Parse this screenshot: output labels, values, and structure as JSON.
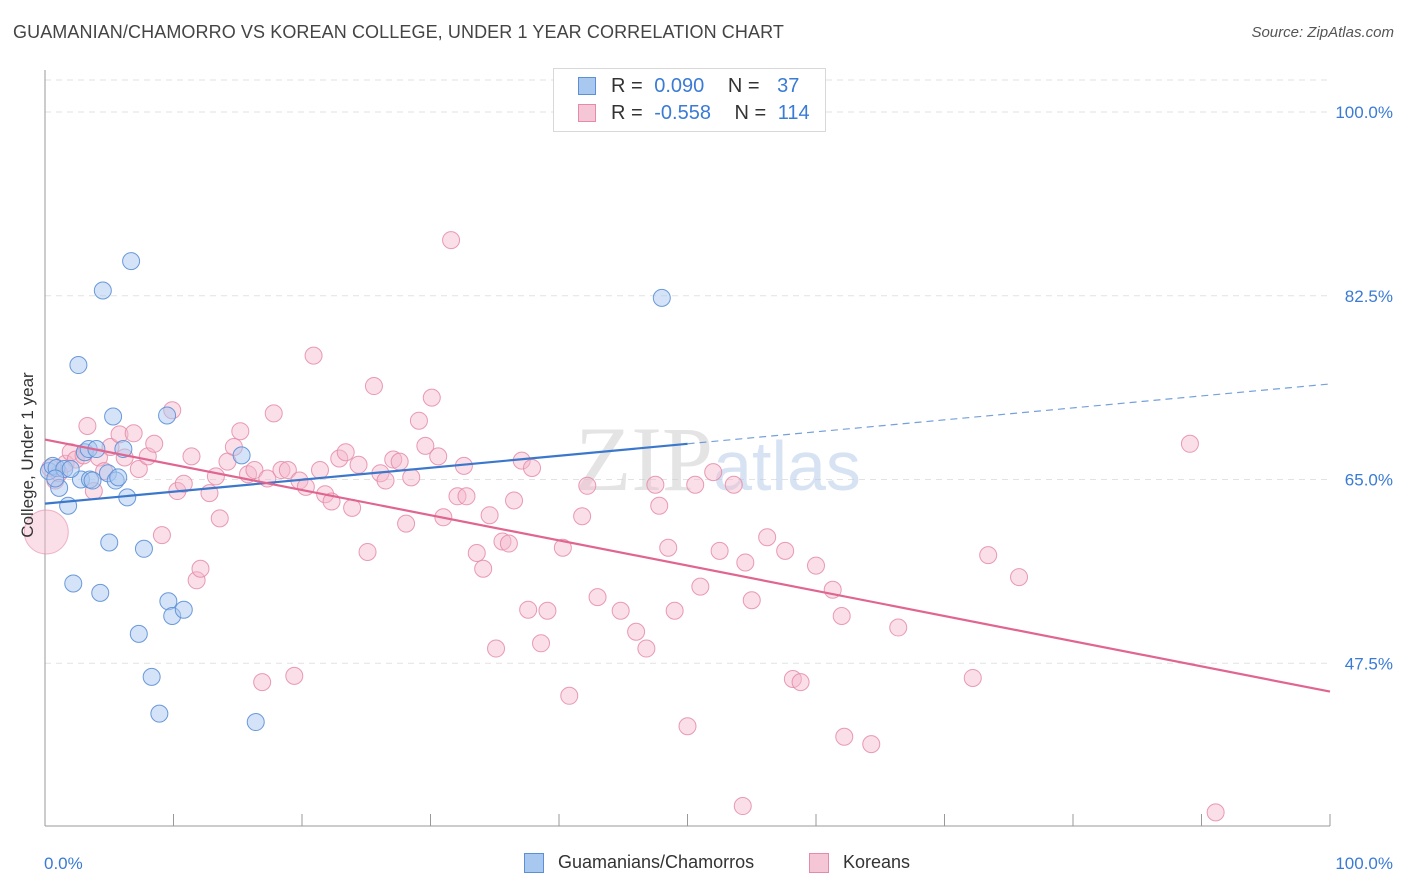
{
  "header": {
    "title": "GUAMANIAN/CHAMORRO VS KOREAN COLLEGE, UNDER 1 YEAR CORRELATION CHART",
    "source": "Source: ZipAtlas.com"
  },
  "legend": {
    "rows": [
      {
        "r_label": "R =",
        "r_value": "0.090",
        "n_label": "N =",
        "n_value": "37"
      },
      {
        "r_label": "R =",
        "r_value": "-0.558",
        "n_label": "N =",
        "n_value": "114"
      }
    ]
  },
  "bottom_legend": [
    "Guamanians/Chamorros",
    "Koreans"
  ],
  "colors": {
    "blue_fill": "#a9c8f0",
    "blue_stroke": "#5b8fd6",
    "blue_line": "#3b78cc",
    "pink_fill": "#f5b8cb",
    "pink_stroke": "#e58aa8",
    "pink_line": "#e06590",
    "axis_label": "#3a7bd5",
    "grid": "#e2e2e2"
  },
  "chart_data": {
    "type": "scatter",
    "title": "GUAMANIAN/CHAMORRO VS KOREAN COLLEGE, UNDER 1 YEAR CORRELATION CHART",
    "xlabel": "",
    "ylabel": "College, Under 1 year",
    "xlim": [
      0,
      100
    ],
    "ylim": [
      32,
      104
    ],
    "x_tick_labels": [
      "0.0%",
      "100.0%"
    ],
    "y_ticks": [
      47.5,
      65.0,
      82.5,
      100.0
    ],
    "y_tick_labels": [
      "47.5%",
      "65.0%",
      "82.5%",
      "100.0%"
    ],
    "grid": true,
    "watermark": "ZIPatlas",
    "series": [
      {
        "name": "Guamanians/Chamorros",
        "r": 0.09,
        "n": 37,
        "trend": {
          "x_start": 0,
          "y_start": 62.7,
          "x_end": 50,
          "y_end": 68.4,
          "dashed_to_x": 100,
          "dashed_to_y": 74.1
        },
        "points": [
          [
            0.3,
            65.8
          ],
          [
            0.6,
            66.3
          ],
          [
            0.9,
            66.1
          ],
          [
            1.1,
            64.2
          ],
          [
            1.5,
            66.0
          ],
          [
            1.8,
            62.5
          ],
          [
            2.2,
            55.1
          ],
          [
            2.6,
            75.9
          ],
          [
            2.8,
            65.0
          ],
          [
            3.1,
            67.6
          ],
          [
            3.4,
            67.9
          ],
          [
            3.5,
            65.0
          ],
          [
            3.7,
            64.9
          ],
          [
            4.0,
            67.9
          ],
          [
            4.3,
            54.2
          ],
          [
            4.5,
            83.0
          ],
          [
            4.9,
            65.6
          ],
          [
            5.0,
            59.0
          ],
          [
            5.3,
            71.0
          ],
          [
            5.5,
            64.9
          ],
          [
            5.7,
            65.2
          ],
          [
            6.1,
            67.9
          ],
          [
            6.4,
            63.3
          ],
          [
            6.7,
            85.8
          ],
          [
            7.3,
            50.3
          ],
          [
            7.7,
            58.4
          ],
          [
            8.3,
            46.2
          ],
          [
            8.9,
            42.7
          ],
          [
            9.5,
            71.1
          ],
          [
            9.6,
            53.4
          ],
          [
            9.9,
            52.0
          ],
          [
            10.8,
            52.6
          ],
          [
            15.3,
            67.3
          ],
          [
            16.4,
            41.9
          ],
          [
            48.0,
            82.3
          ],
          [
            0.8,
            65.1
          ],
          [
            2.0,
            66.0
          ]
        ]
      },
      {
        "name": "Koreans",
        "r": -0.558,
        "n": 114,
        "trend": {
          "x_start": 0,
          "y_start": 68.8,
          "x_end": 100,
          "y_end": 44.8
        },
        "points": [
          [
            0.4,
            66.1
          ],
          [
            0.8,
            64.9
          ],
          [
            1.1,
            65.6
          ],
          [
            1.6,
            66.5
          ],
          [
            2.0,
            67.6
          ],
          [
            2.4,
            66.9
          ],
          [
            3.0,
            67.3
          ],
          [
            3.3,
            70.1
          ],
          [
            3.8,
            63.9
          ],
          [
            4.2,
            67.1
          ],
          [
            4.6,
            65.8
          ],
          [
            5.1,
            68.1
          ],
          [
            5.8,
            69.3
          ],
          [
            6.2,
            67.1
          ],
          [
            6.9,
            69.4
          ],
          [
            7.3,
            66.0
          ],
          [
            8.0,
            67.2
          ],
          [
            8.5,
            68.4
          ],
          [
            9.1,
            59.7
          ],
          [
            9.9,
            71.6
          ],
          [
            10.3,
            63.9
          ],
          [
            10.8,
            64.6
          ],
          [
            11.4,
            67.2
          ],
          [
            11.8,
            55.4
          ],
          [
            12.1,
            56.5
          ],
          [
            12.8,
            63.7
          ],
          [
            13.3,
            65.3
          ],
          [
            13.6,
            61.3
          ],
          [
            14.2,
            66.7
          ],
          [
            14.7,
            68.1
          ],
          [
            15.2,
            69.6
          ],
          [
            15.8,
            65.5
          ],
          [
            16.3,
            65.9
          ],
          [
            16.9,
            45.7
          ],
          [
            17.3,
            65.1
          ],
          [
            17.8,
            71.3
          ],
          [
            18.4,
            65.9
          ],
          [
            18.9,
            65.9
          ],
          [
            19.4,
            46.3
          ],
          [
            19.8,
            64.9
          ],
          [
            20.3,
            64.3
          ],
          [
            20.9,
            76.8
          ],
          [
            21.4,
            65.9
          ],
          [
            21.8,
            63.6
          ],
          [
            22.3,
            62.9
          ],
          [
            22.9,
            67.0
          ],
          [
            23.4,
            67.6
          ],
          [
            23.9,
            62.3
          ],
          [
            24.4,
            66.4
          ],
          [
            25.1,
            58.1
          ],
          [
            25.6,
            73.9
          ],
          [
            26.1,
            65.6
          ],
          [
            26.5,
            64.9
          ],
          [
            27.1,
            66.9
          ],
          [
            27.6,
            66.7
          ],
          [
            28.1,
            60.8
          ],
          [
            28.5,
            65.2
          ],
          [
            29.1,
            70.6
          ],
          [
            29.6,
            68.2
          ],
          [
            30.1,
            72.8
          ],
          [
            30.6,
            67.2
          ],
          [
            31.0,
            61.4
          ],
          [
            31.6,
            87.8
          ],
          [
            32.1,
            63.4
          ],
          [
            32.6,
            66.3
          ],
          [
            32.8,
            63.4
          ],
          [
            33.6,
            58.0
          ],
          [
            34.1,
            56.5
          ],
          [
            34.6,
            61.6
          ],
          [
            35.1,
            48.9
          ],
          [
            35.6,
            59.1
          ],
          [
            36.1,
            58.9
          ],
          [
            36.5,
            63.0
          ],
          [
            37.1,
            66.8
          ],
          [
            37.6,
            52.6
          ],
          [
            37.9,
            66.1
          ],
          [
            38.6,
            49.4
          ],
          [
            39.1,
            52.5
          ],
          [
            40.3,
            58.5
          ],
          [
            40.8,
            44.4
          ],
          [
            41.8,
            61.5
          ],
          [
            42.2,
            64.4
          ],
          [
            43.0,
            53.8
          ],
          [
            44.8,
            52.5
          ],
          [
            46.0,
            50.5
          ],
          [
            46.8,
            48.9
          ],
          [
            47.5,
            64.5
          ],
          [
            47.8,
            62.5
          ],
          [
            48.5,
            58.5
          ],
          [
            49.0,
            52.5
          ],
          [
            50.0,
            41.5
          ],
          [
            50.6,
            64.5
          ],
          [
            51.0,
            54.8
          ],
          [
            52.0,
            65.7
          ],
          [
            52.5,
            58.2
          ],
          [
            53.6,
            64.5
          ],
          [
            54.5,
            57.1
          ],
          [
            55.0,
            53.5
          ],
          [
            56.2,
            59.5
          ],
          [
            57.6,
            58.2
          ],
          [
            58.2,
            46.0
          ],
          [
            58.8,
            45.7
          ],
          [
            60.0,
            56.8
          ],
          [
            61.3,
            54.5
          ],
          [
            62.0,
            52.0
          ],
          [
            62.2,
            40.5
          ],
          [
            66.4,
            50.9
          ],
          [
            72.2,
            46.1
          ],
          [
            73.4,
            57.8
          ],
          [
            75.8,
            55.7
          ],
          [
            89.1,
            68.4
          ],
          [
            91.1,
            33.3
          ],
          [
            64.3,
            39.8
          ],
          [
            54.3,
            33.9
          ]
        ]
      }
    ]
  }
}
